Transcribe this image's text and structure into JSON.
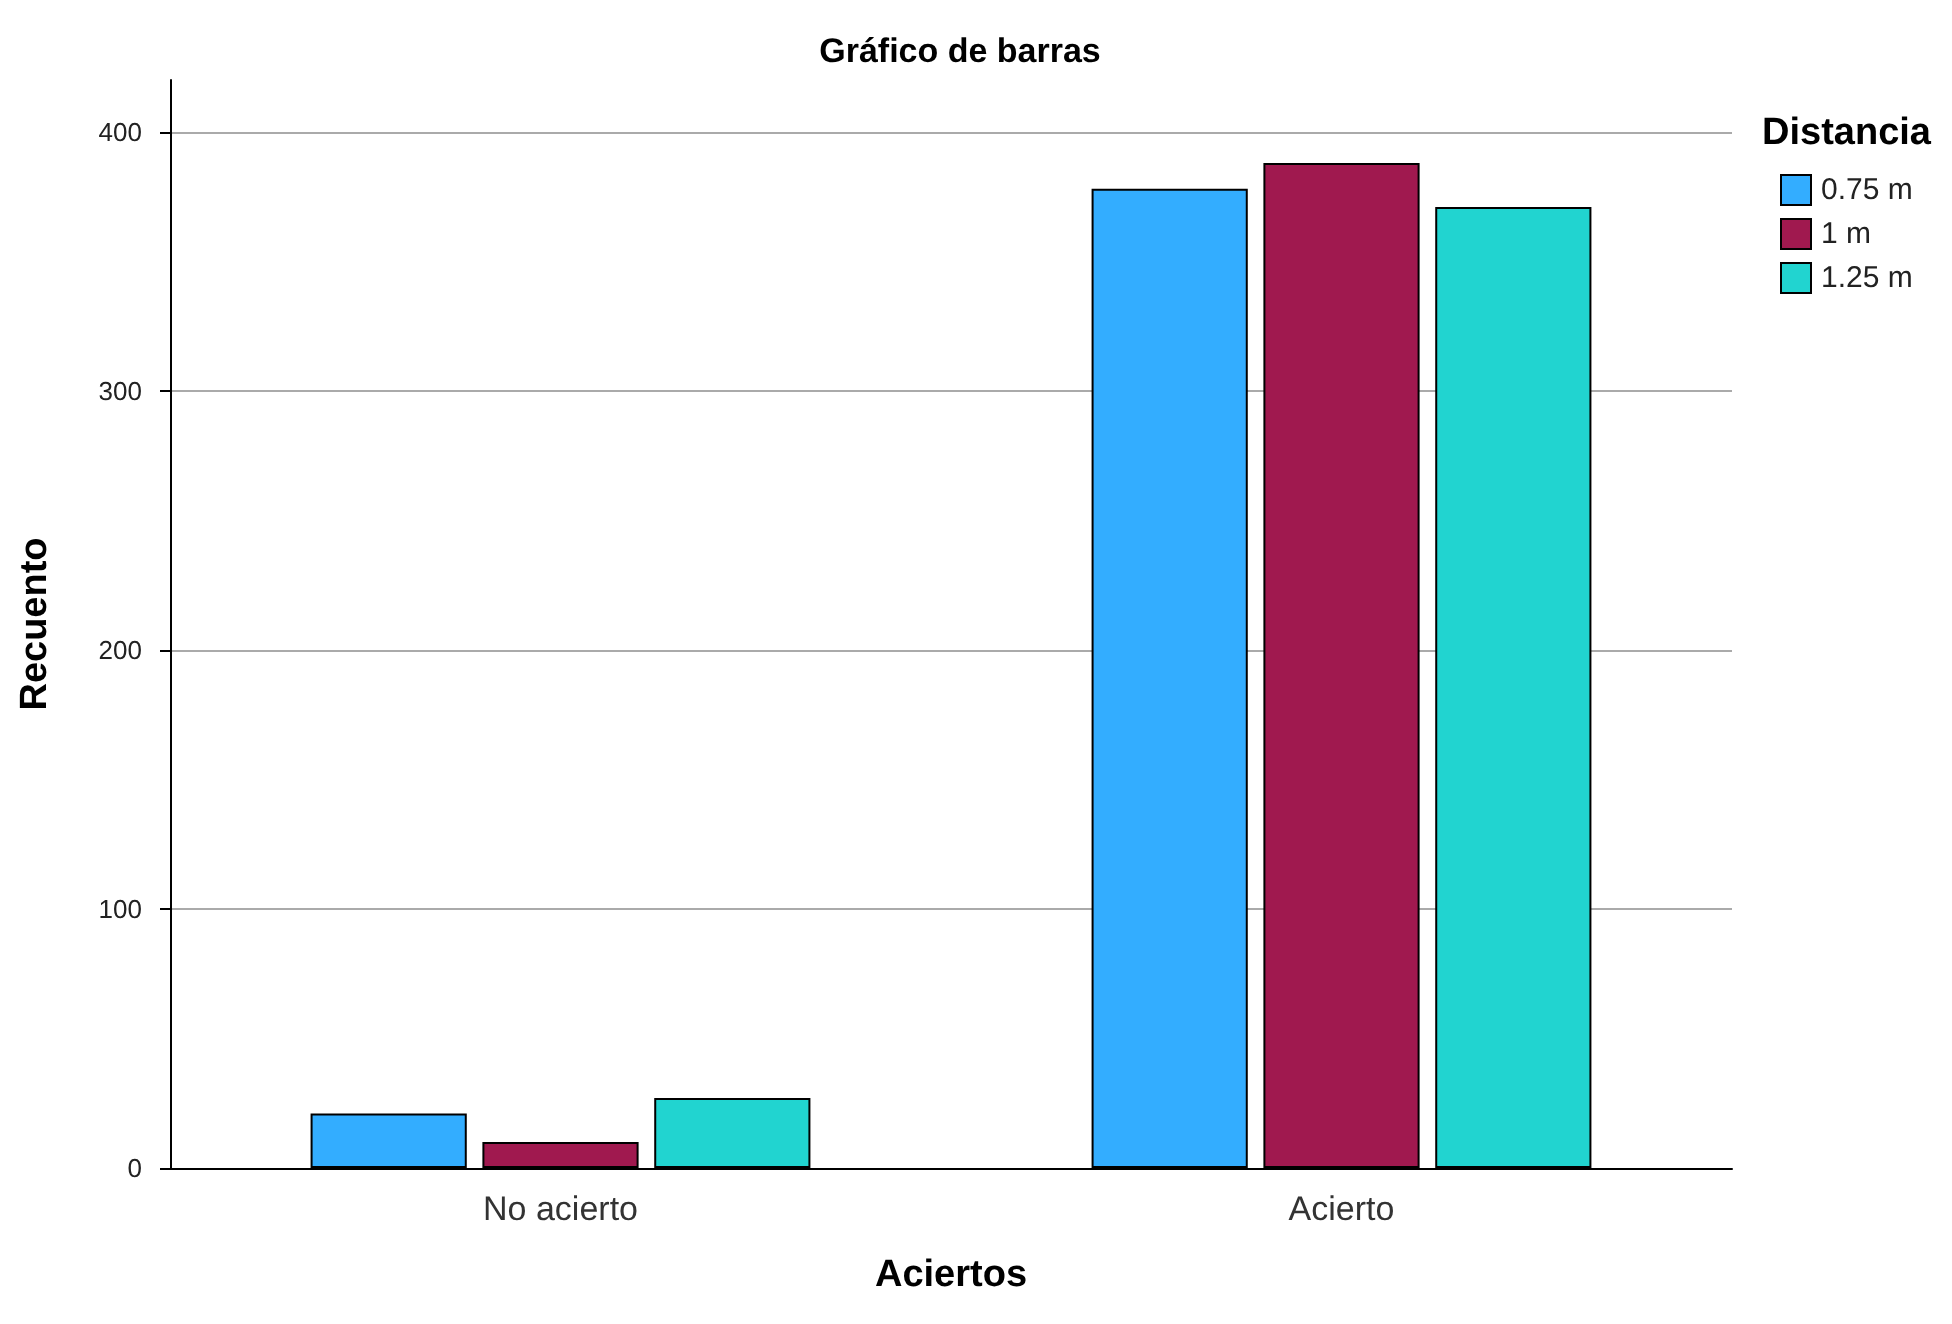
{
  "chart_data": {
    "type": "bar",
    "title": "Gráfico de barras",
    "xlabel": "Aciertos",
    "ylabel": "Recuento",
    "legend_title": "Distancia",
    "categories": [
      "No acierto",
      "Acierto"
    ],
    "series": [
      {
        "name": "0.75 m",
        "color": "#33adff",
        "values": [
          21,
          378
        ]
      },
      {
        "name": "1 m",
        "color": "#a0194f",
        "values": [
          10,
          388
        ]
      },
      {
        "name": "1.25 m",
        "color": "#21d4d0",
        "values": [
          27,
          371
        ]
      }
    ],
    "ylim": [
      0,
      420
    ],
    "yticks": [
      0,
      100,
      200,
      300,
      400
    ],
    "grid": "y",
    "legend": "right"
  }
}
